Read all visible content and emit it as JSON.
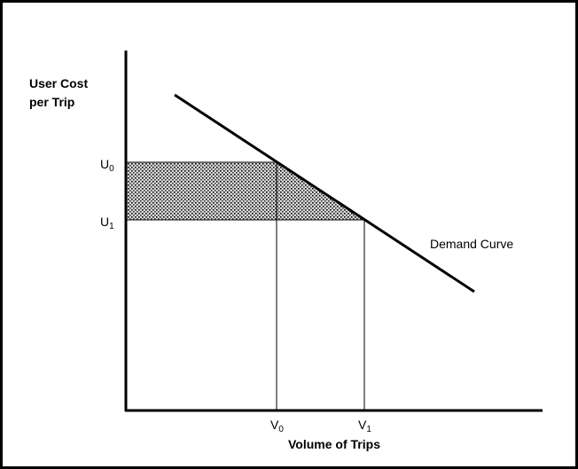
{
  "y_axis_label": [
    "User Cost",
    "per Trip"
  ],
  "x_axis_label": "Volume of Trips",
  "curve_label": "Demand Curve",
  "y_labels": [
    {
      "base": "U",
      "sub": "0"
    },
    {
      "base": "U",
      "sub": "1"
    }
  ],
  "x_labels": [
    {
      "base": "V",
      "sub": "0"
    },
    {
      "base": "V",
      "sub": "1"
    }
  ]
}
